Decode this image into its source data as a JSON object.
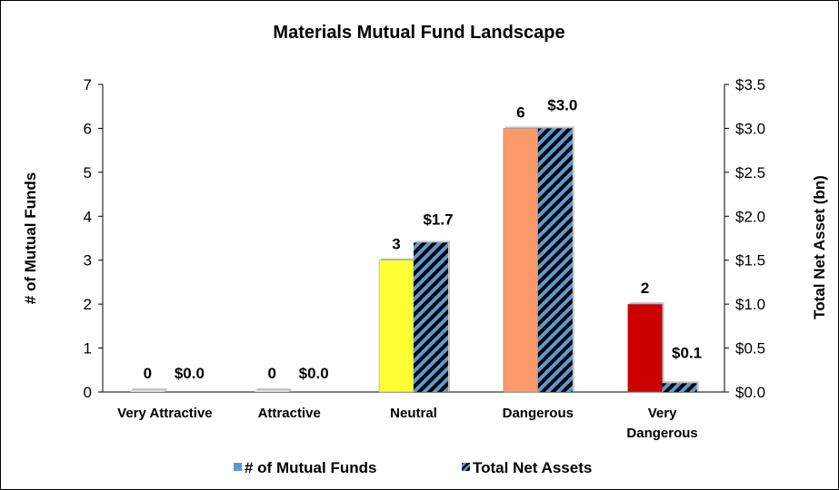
{
  "chart_data": {
    "type": "bar",
    "title": "Materials Mutual Fund Landscape",
    "categories": [
      [
        "Very Attractive"
      ],
      [
        "Attractive"
      ],
      [
        "Neutral"
      ],
      [
        "Dangerous"
      ],
      [
        "Very",
        "Dangerous"
      ]
    ],
    "series": [
      {
        "name": "# of Mutual Funds",
        "axis": "left",
        "values": [
          0,
          0,
          3,
          6,
          2
        ],
        "data_labels": [
          "0",
          "0",
          "3",
          "6",
          "2"
        ],
        "colors": [
          "#d9d9d9",
          "#d9d9d9",
          "#ffff33",
          "#fa9a6b",
          "#cc0000"
        ],
        "legend_color": "#5b9bd5"
      },
      {
        "name": "Total Net Assets",
        "axis": "right",
        "values": [
          0.0,
          0.0,
          1.7,
          3.0,
          0.1
        ],
        "data_labels": [
          "$0.0",
          "$0.0",
          "$1.7",
          "$3.0",
          "$0.1"
        ],
        "pattern_colors": [
          "#000000",
          "#5b9bd5"
        ]
      }
    ],
    "ylabel": "# of Mutual Funds",
    "ylim": [
      0,
      7
    ],
    "yticks": [
      "0",
      "1",
      "2",
      "3",
      "4",
      "5",
      "6",
      "7"
    ],
    "y2label": "Total Net Asset (bn)",
    "y2lim": [
      0,
      3.5
    ],
    "y2ticks": [
      "$0.0",
      "$0.5",
      "$1.0",
      "$1.5",
      "$2.0",
      "$2.5",
      "$3.0",
      "$3.5"
    ],
    "legend_position": "bottom",
    "grid": false
  }
}
